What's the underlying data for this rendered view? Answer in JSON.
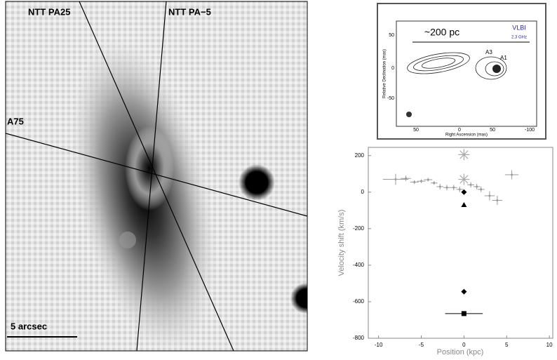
{
  "image": {
    "labels": [
      "NTT PA25",
      "NTT PA−5",
      "A75",
      "5 arcsec"
    ]
  },
  "vlbi": {
    "scale": "~200 pc",
    "title": "VLBI",
    "freq": "2.3 GHz",
    "components": [
      "A3",
      "A1"
    ],
    "ylabel": "Relative Declination (mas)",
    "xlabel": "Right Ascension (mas)",
    "yticks": [
      "50",
      "0",
      "-50"
    ],
    "xticks": [
      "50",
      "0",
      "50",
      "-100"
    ]
  },
  "chart_data": {
    "type": "scatter",
    "xlabel": "Position (kpc)",
    "ylabel": "Velocity shift (km/s)",
    "xlim": [
      -11.2,
      10.4
    ],
    "ylim": [
      -800,
      245
    ],
    "xticks": [
      -10,
      -5,
      0,
      5,
      10
    ],
    "yticks": [
      -800,
      -600,
      -400,
      -200,
      0,
      200
    ],
    "series": [
      {
        "color": "#9a9a9a",
        "marker": "cross",
        "x": [
          -8,
          -6.8,
          -5.8,
          -5,
          -4.2,
          -3.5,
          -2.8,
          -2,
          -1.2,
          -0.5,
          0.8,
          1.5,
          2,
          3,
          3.9,
          5.6
        ],
        "values": [
          70,
          75,
          55,
          60,
          68,
          50,
          30,
          25,
          25,
          15,
          40,
          30,
          15,
          -20,
          -45,
          95
        ],
        "xerr": [
          1.5,
          0.6,
          0.5,
          0.5,
          0.5,
          0.4,
          0.4,
          0.4,
          0.4,
          0.4,
          0.4,
          0.4,
          0.4,
          0.6,
          0.6,
          0.8
        ],
        "yerr": [
          30,
          15,
          10,
          10,
          10,
          10,
          15,
          15,
          15,
          15,
          15,
          15,
          15,
          25,
          25,
          25
        ]
      },
      {
        "color": "#aaaaaa",
        "marker": "star",
        "x": [
          0,
          0
        ],
        "values": [
          205,
          70
        ]
      },
      {
        "color": "#000000",
        "markers": [
          "diamond",
          "triangle",
          "diamond",
          "square"
        ],
        "x": [
          0,
          0,
          0,
          0
        ],
        "values": [
          0,
          -70,
          -545,
          -665
        ],
        "xerr": [
          0,
          0,
          0,
          2.2
        ]
      }
    ]
  }
}
